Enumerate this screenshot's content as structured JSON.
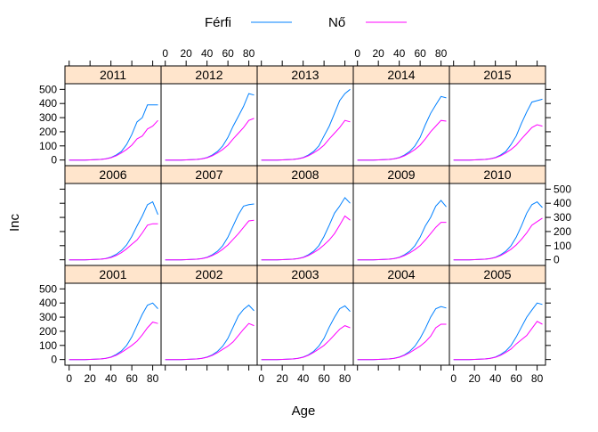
{
  "chart_data": {
    "type": "line",
    "xlabel": "Age",
    "ylabel": "Inc",
    "xlim": [
      -4,
      88
    ],
    "ylim": [
      -40,
      540
    ],
    "x_ticks": [
      0,
      20,
      40,
      60,
      80
    ],
    "y_ticks": [
      0,
      100,
      200,
      300,
      400,
      500
    ],
    "legend": {
      "placement": "top"
    },
    "ages": [
      0,
      5,
      10,
      15,
      20,
      25,
      30,
      35,
      40,
      45,
      50,
      55,
      60,
      65,
      70,
      75,
      80,
      85
    ],
    "series": [
      {
        "name": "Férfi",
        "color": "#0080ff"
      },
      {
        "name": "Nő",
        "color": "#ff00ff"
      }
    ],
    "panels": [
      {
        "label": "2001",
        "values": [
          [
            0,
            0,
            0,
            0,
            1,
            2,
            4,
            9,
            18,
            35,
            60,
            100,
            160,
            240,
            320,
            385,
            400,
            360
          ],
          [
            0,
            0,
            0,
            0,
            1,
            2,
            4,
            8,
            16,
            30,
            50,
            75,
            100,
            130,
            175,
            225,
            265,
            255
          ]
        ]
      },
      {
        "label": "2002",
        "values": [
          [
            0,
            0,
            0,
            0,
            1,
            2,
            4,
            9,
            18,
            33,
            58,
            95,
            150,
            230,
            310,
            355,
            385,
            345
          ],
          [
            0,
            0,
            0,
            0,
            1,
            2,
            4,
            8,
            16,
            29,
            48,
            72,
            95,
            125,
            170,
            215,
            255,
            240
          ]
        ]
      },
      {
        "label": "2003",
        "values": [
          [
            0,
            0,
            0,
            0,
            1,
            2,
            4,
            9,
            18,
            33,
            58,
            95,
            150,
            230,
            300,
            360,
            380,
            340
          ],
          [
            0,
            0,
            0,
            0,
            1,
            2,
            4,
            8,
            16,
            30,
            50,
            75,
            100,
            135,
            175,
            215,
            240,
            225
          ]
        ]
      },
      {
        "label": "2004",
        "values": [
          [
            0,
            0,
            0,
            0,
            1,
            2,
            4,
            9,
            18,
            33,
            58,
            95,
            150,
            220,
            300,
            360,
            375,
            365
          ],
          [
            0,
            0,
            0,
            0,
            1,
            2,
            4,
            8,
            16,
            30,
            48,
            72,
            95,
            125,
            165,
            225,
            250,
            250
          ]
        ]
      },
      {
        "label": "2005",
        "values": [
          [
            0,
            0,
            0,
            0,
            1,
            2,
            4,
            9,
            18,
            35,
            60,
            100,
            160,
            230,
            300,
            350,
            400,
            390
          ],
          [
            0,
            0,
            0,
            0,
            1,
            2,
            4,
            8,
            16,
            30,
            50,
            75,
            110,
            140,
            170,
            220,
            270,
            250
          ]
        ]
      },
      {
        "label": "2006",
        "values": [
          [
            0,
            0,
            0,
            0,
            1,
            2,
            4,
            9,
            20,
            38,
            65,
            105,
            165,
            240,
            310,
            390,
            410,
            320
          ],
          [
            0,
            0,
            0,
            0,
            1,
            2,
            4,
            8,
            16,
            30,
            50,
            78,
            110,
            140,
            190,
            245,
            255,
            255
          ]
        ]
      },
      {
        "label": "2007",
        "values": [
          [
            0,
            0,
            0,
            0,
            1,
            2,
            4,
            9,
            18,
            35,
            60,
            100,
            160,
            240,
            320,
            380,
            390,
            395
          ],
          [
            0,
            0,
            0,
            0,
            1,
            2,
            4,
            8,
            16,
            30,
            48,
            75,
            105,
            145,
            185,
            230,
            275,
            280
          ]
        ]
      },
      {
        "label": "2008",
        "values": [
          [
            0,
            0,
            0,
            0,
            1,
            2,
            4,
            9,
            18,
            35,
            60,
            100,
            165,
            245,
            330,
            380,
            440,
            400
          ],
          [
            0,
            0,
            0,
            0,
            1,
            2,
            4,
            8,
            16,
            30,
            50,
            75,
            105,
            140,
            185,
            245,
            310,
            280
          ]
        ]
      },
      {
        "label": "2009",
        "values": [
          [
            0,
            0,
            0,
            0,
            1,
            2,
            4,
            9,
            18,
            35,
            60,
            100,
            160,
            240,
            300,
            380,
            420,
            375
          ],
          [
            0,
            0,
            0,
            0,
            1,
            2,
            4,
            8,
            16,
            30,
            48,
            72,
            100,
            140,
            185,
            230,
            265,
            265
          ]
        ]
      },
      {
        "label": "2010",
        "values": [
          [
            0,
            0,
            0,
            0,
            1,
            2,
            4,
            9,
            18,
            35,
            60,
            100,
            160,
            240,
            330,
            390,
            410,
            370
          ],
          [
            0,
            0,
            0,
            0,
            1,
            2,
            4,
            8,
            16,
            30,
            50,
            75,
            105,
            145,
            190,
            245,
            270,
            295
          ]
        ]
      },
      {
        "label": "2011",
        "values": [
          [
            0,
            0,
            0,
            0,
            1,
            2,
            4,
            9,
            18,
            35,
            60,
            110,
            180,
            270,
            300,
            390,
            390,
            390
          ],
          [
            0,
            0,
            0,
            0,
            1,
            2,
            4,
            8,
            16,
            30,
            50,
            75,
            105,
            150,
            170,
            220,
            240,
            280
          ]
        ]
      },
      {
        "label": "2012",
        "values": [
          [
            0,
            0,
            0,
            0,
            1,
            2,
            4,
            9,
            18,
            35,
            60,
            100,
            160,
            240,
            310,
            380,
            470,
            460
          ],
          [
            0,
            0,
            0,
            0,
            1,
            2,
            4,
            8,
            16,
            30,
            50,
            75,
            105,
            150,
            190,
            230,
            280,
            295
          ]
        ]
      },
      {
        "label": "2013",
        "values": [
          [
            0,
            0,
            0,
            0,
            1,
            2,
            4,
            9,
            18,
            35,
            60,
            100,
            170,
            240,
            330,
            420,
            470,
            500
          ],
          [
            0,
            0,
            0,
            0,
            1,
            2,
            4,
            8,
            16,
            30,
            50,
            75,
            105,
            150,
            190,
            230,
            280,
            270
          ]
        ]
      },
      {
        "label": "2014",
        "values": [
          [
            0,
            0,
            0,
            0,
            1,
            2,
            4,
            9,
            18,
            35,
            60,
            100,
            160,
            250,
            330,
            390,
            450,
            440
          ],
          [
            0,
            0,
            0,
            0,
            1,
            2,
            4,
            8,
            16,
            30,
            50,
            75,
            105,
            150,
            200,
            240,
            280,
            275
          ]
        ]
      },
      {
        "label": "2015",
        "values": [
          [
            0,
            0,
            0,
            0,
            1,
            2,
            4,
            9,
            18,
            35,
            60,
            110,
            170,
            260,
            340,
            410,
            420,
            430
          ],
          [
            0,
            0,
            0,
            0,
            1,
            2,
            4,
            8,
            16,
            30,
            50,
            75,
            105,
            150,
            190,
            230,
            250,
            240
          ]
        ]
      }
    ]
  }
}
